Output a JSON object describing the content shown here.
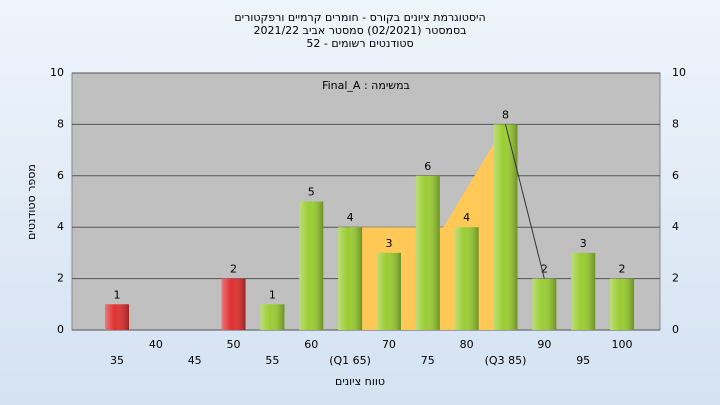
{
  "chart_data": {
    "type": "bar",
    "title": [
      "היסטוגרמת ציונים בקורס - חומרים קרמיים ורפקטורים",
      "בסמסטר  (02/2021)  סמסטר אביב 2021/22",
      "סטודנטים רשומים - 52"
    ],
    "annotation": "Final_A : במשימה",
    "ylabel": "מספר סטודנטים",
    "xlabel": "טווח ציונים",
    "categories": [
      "35",
      "40",
      "45",
      "50",
      "55",
      "60",
      "(Q1 65)",
      "70",
      "75",
      "80",
      "(Q3 85)",
      "90",
      "95",
      "100"
    ],
    "values": [
      1,
      0,
      0,
      2,
      1,
      5,
      4,
      3,
      6,
      4,
      8,
      2,
      3,
      2
    ],
    "value_labels": [
      "1",
      null,
      null,
      "2",
      "1",
      "5",
      "4",
      "3",
      "6",
      "4",
      "8",
      "2",
      "3",
      "2"
    ],
    "colors": [
      "#e03030",
      "#9acd32",
      "#9acd32",
      "#e03030",
      "#9acd32",
      "#9acd32",
      "#9acd32",
      "#9acd32",
      "#9acd32",
      "#9acd32",
      "#9acd32",
      "#9acd32",
      "#9acd32",
      "#9acd32"
    ],
    "iqr_area": {
      "x": [
        65,
        77,
        85
      ],
      "values": [
        4,
        4,
        8
      ],
      "color": "#ffc857"
    },
    "line": {
      "x": [
        85,
        90
      ],
      "values": [
        8,
        2
      ],
      "color": "#333333"
    },
    "ylim": [
      0,
      10
    ],
    "yticks": [
      0,
      2,
      4,
      6,
      8,
      10
    ],
    "grid": true
  }
}
